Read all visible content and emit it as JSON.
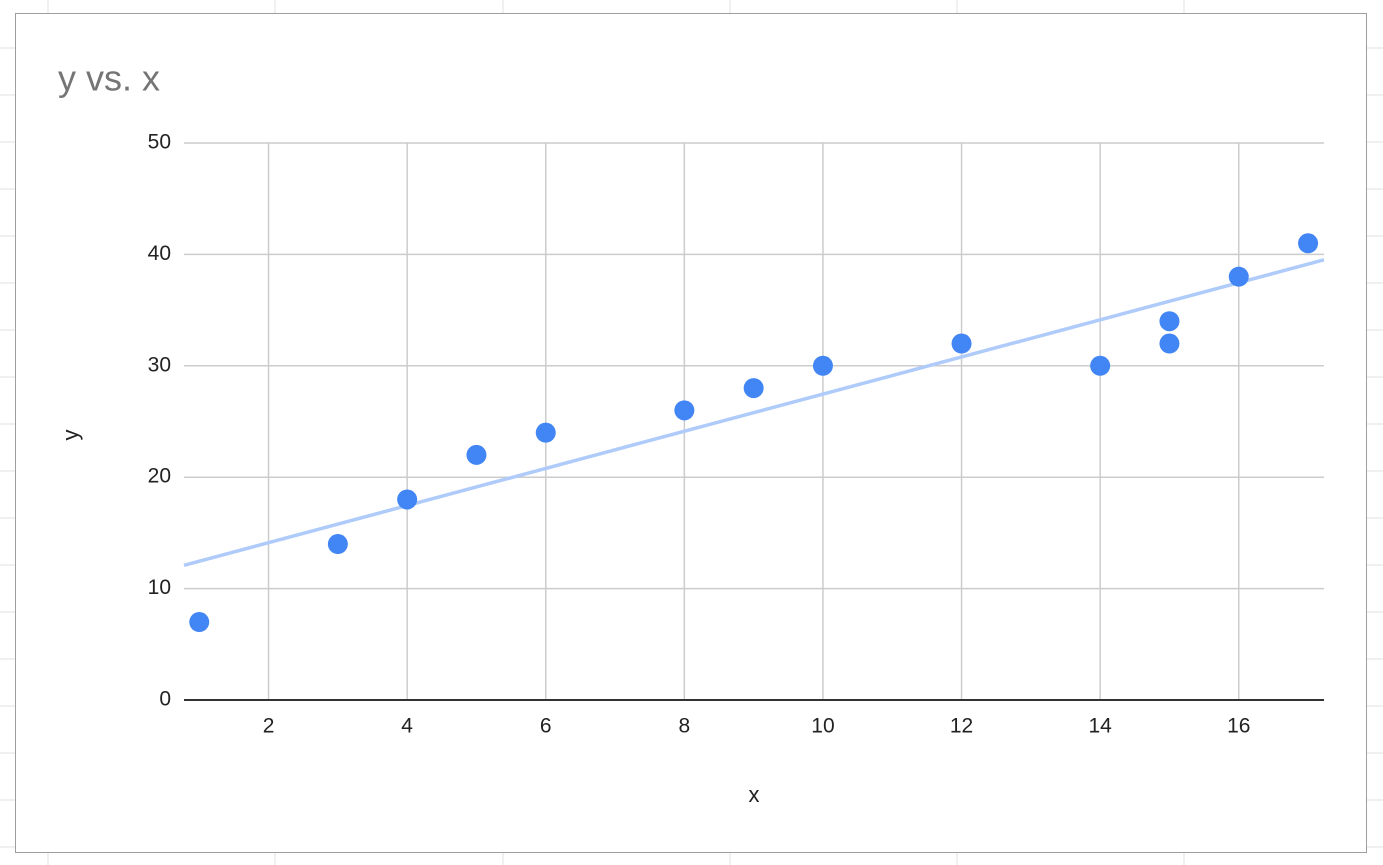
{
  "chart_data": {
    "type": "scatter",
    "title": "y vs. x",
    "x_label": "x",
    "y_label": "y",
    "xlim": [
      0.78,
      17.23
    ],
    "ylim": [
      0,
      50
    ],
    "xticks": [
      2,
      4,
      6,
      8,
      10,
      12,
      14,
      16
    ],
    "yticks": [
      0,
      10,
      20,
      30,
      40,
      50
    ],
    "grid": true,
    "series": [
      {
        "name": "y",
        "color": "#4285f4",
        "x": [
          1,
          3,
          4,
          5,
          6,
          8,
          9,
          10,
          12,
          14,
          15,
          15,
          16,
          17
        ],
        "values": [
          7,
          14,
          18,
          22,
          24,
          26,
          28,
          30,
          32,
          30,
          34,
          32,
          38,
          41
        ]
      }
    ],
    "trendline": {
      "color": "#aecbfa",
      "x": [
        0.78,
        17.23
      ],
      "values": [
        12.09,
        39.51
      ]
    }
  }
}
